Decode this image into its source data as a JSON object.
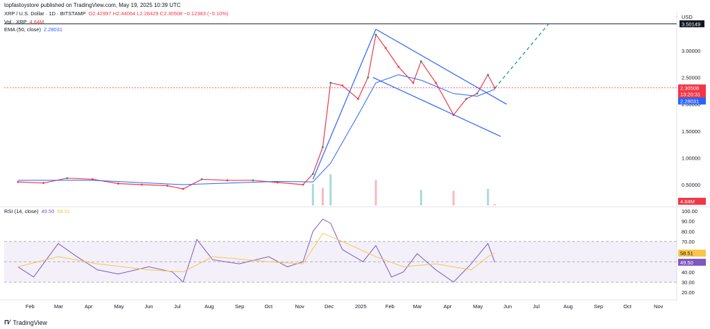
{
  "header": {
    "published": "topfastoystore published on TradingView.com, May 19, 2025 10:39 UTC",
    "symbol": "XRP / U.S. Dollar · 1D · BITSTAMP",
    "ohlc": "O2.42997 H2.44064 L2.28429 C2.30508 −0.12383 (−5.10%)",
    "vol_label": "Vol · XRP",
    "vol_value": "4.84M",
    "ema_label": "EMA (50, close)",
    "ema_value": "2.28031",
    "rsi_label": "RSI (14, close)",
    "rsi_value": "49.50",
    "rsi_ma_value": "58.51"
  },
  "price_axis": {
    "currency": "USD",
    "ticks": [
      "3.50149",
      "3.00000",
      "2.50000",
      "2.00000",
      "1.50000",
      "1.00000",
      "0.50000"
    ],
    "ticks_values": [
      3.50149,
      3.0,
      2.5,
      2.0,
      1.5,
      1.0,
      0.5
    ],
    "price_badge": "2.30508",
    "price_countdown": "13:20:31",
    "ema_badge": "2.28031",
    "vol_badge": "4.84M"
  },
  "rsi_axis": {
    "ticks": [
      "100.00",
      "90.00",
      "80.00",
      "70.00",
      "60.00",
      "50.00",
      "40.00",
      "30.00",
      "20.00"
    ],
    "ticks_values": [
      100,
      90,
      80,
      70,
      60,
      50,
      40,
      30,
      20
    ]
  },
  "time_axis": [
    "Feb",
    "Mar",
    "Apr",
    "May",
    "Jun",
    "Jul",
    "Aug",
    "Sep",
    "Oct",
    "Nov",
    "Dec",
    "2025",
    "Feb",
    "Mar",
    "Apr",
    "May",
    "Jun",
    "Jul",
    "Aug",
    "Sep",
    "Oct",
    "Nov"
  ],
  "footer": {
    "brand": "TradingView"
  },
  "colors": {
    "up": "#089981",
    "down": "#f23645",
    "ema": "#2962ff",
    "rsi": "#7e57c2",
    "rsi_ma": "#f7c549",
    "channel": "#2962ff",
    "target": "#089981"
  },
  "chart_data": [
    {
      "type": "line",
      "title": "XRP / U.S. Dollar · 1D · BITSTAMP",
      "xlabel": "",
      "ylabel": "USD",
      "ylim": [
        0.3,
        3.6
      ],
      "series": [
        {
          "name": "XRP",
          "x": [
            "2024-01-20",
            "2024-02-15",
            "2024-03-10",
            "2024-04-05",
            "2024-05-01",
            "2024-05-25",
            "2024-06-20",
            "2024-07-06",
            "2024-07-25",
            "2024-08-20",
            "2024-09-15",
            "2024-10-10",
            "2024-11-05",
            "2024-11-15",
            "2024-11-25",
            "2024-12-03",
            "2024-12-15",
            "2024-12-31",
            "2025-01-10",
            "2025-01-18",
            "2025-01-28",
            "2025-02-10",
            "2025-02-25",
            "2025-03-05",
            "2025-03-20",
            "2025-04-07",
            "2025-04-20",
            "2025-05-01",
            "2025-05-12",
            "2025-05-19"
          ],
          "values": [
            0.55,
            0.53,
            0.62,
            0.6,
            0.52,
            0.5,
            0.48,
            0.42,
            0.6,
            0.58,
            0.58,
            0.54,
            0.5,
            0.7,
            1.2,
            2.4,
            2.35,
            2.1,
            2.5,
            3.3,
            3.05,
            2.7,
            2.4,
            2.8,
            2.4,
            1.8,
            2.1,
            2.2,
            2.55,
            2.30508
          ]
        },
        {
          "name": "EMA (50, close)",
          "x": [
            "2024-01-20",
            "2024-04-05",
            "2024-07-06",
            "2024-10-10",
            "2024-11-15",
            "2024-12-03",
            "2024-12-31",
            "2025-01-18",
            "2025-02-10",
            "2025-03-05",
            "2025-04-07",
            "2025-05-01",
            "2025-05-19"
          ],
          "values": [
            0.58,
            0.58,
            0.5,
            0.56,
            0.55,
            0.9,
            1.8,
            2.4,
            2.55,
            2.45,
            2.2,
            2.15,
            2.28031
          ]
        }
      ],
      "volume": {
        "x": [
          "2024-11-15",
          "2024-11-25",
          "2024-12-03",
          "2025-01-18",
          "2025-03-05",
          "2025-04-07",
          "2025-05-12",
          "2025-05-19"
        ],
        "values_m": [
          220,
          180,
          320,
          260,
          160,
          150,
          170,
          4.84
        ]
      },
      "annotations": {
        "resistance": 3.50149,
        "current_price": 2.30508
      }
    },
    {
      "type": "line",
      "title": "RSI (14, close)",
      "ylim": [
        20,
        100
      ],
      "bands": [
        30,
        70
      ],
      "series": [
        {
          "name": "RSI (14, close)",
          "x": [
            "2024-01-20",
            "2024-02-05",
            "2024-03-01",
            "2024-03-20",
            "2024-04-10",
            "2024-05-01",
            "2024-06-01",
            "2024-06-25",
            "2024-07-06",
            "2024-07-20",
            "2024-08-05",
            "2024-09-01",
            "2024-10-01",
            "2024-10-20",
            "2024-11-05",
            "2024-11-15",
            "2024-11-25",
            "2024-12-03",
            "2024-12-15",
            "2025-01-05",
            "2025-01-18",
            "2025-02-03",
            "2025-02-15",
            "2025-03-01",
            "2025-03-20",
            "2025-04-07",
            "2025-04-25",
            "2025-05-12",
            "2025-05-19"
          ],
          "values": [
            45,
            35,
            68,
            55,
            42,
            38,
            45,
            40,
            30,
            72,
            52,
            48,
            55,
            45,
            50,
            80,
            92,
            88,
            62,
            50,
            66,
            35,
            40,
            58,
            42,
            30,
            48,
            68,
            49.5
          ]
        },
        {
          "name": "RSI MA",
          "x": [
            "2024-01-20",
            "2024-03-01",
            "2024-04-10",
            "2024-06-01",
            "2024-07-06",
            "2024-08-05",
            "2024-10-01",
            "2024-11-05",
            "2024-11-25",
            "2024-12-15",
            "2025-01-18",
            "2025-02-15",
            "2025-03-20",
            "2025-04-25",
            "2025-05-12",
            "2025-05-19"
          ],
          "values": [
            45,
            55,
            48,
            42,
            40,
            55,
            50,
            48,
            78,
            70,
            55,
            45,
            48,
            42,
            55,
            58.51
          ]
        }
      ]
    }
  ]
}
